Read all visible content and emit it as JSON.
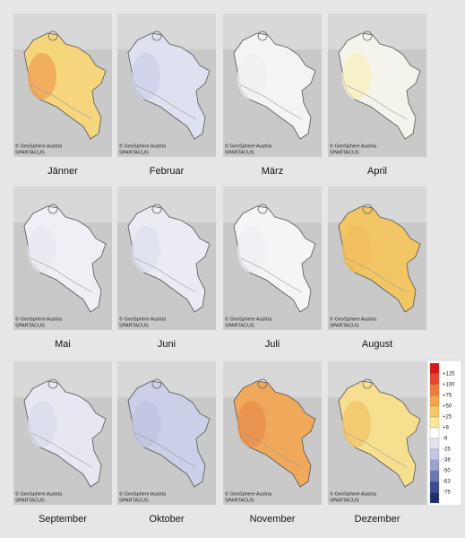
{
  "panels": [
    {
      "month": "Jänner",
      "copyright": "© GeoSphere Austria",
      "source": "SPARTACUS",
      "color": "#f6d67c",
      "accent": "#f0a457"
    },
    {
      "month": "Februar",
      "copyright": "© GeoSphere Austria",
      "source": "SPARTACUS",
      "color": "#dfe1f0",
      "accent": "#cdd1ea"
    },
    {
      "month": "März",
      "copyright": "© GeoSphere Austria",
      "source": "SPARTACUS",
      "color": "#f4f4f5",
      "accent": "#f0f0f2"
    },
    {
      "month": "April",
      "copyright": "© GeoSphere Austria",
      "source": "SPARTACUS",
      "color": "#f5f4ec",
      "accent": "#f8f0c0"
    },
    {
      "month": "Mai",
      "copyright": "© GeoSphere Austria",
      "source": "SPARTACUS",
      "color": "#efeff5",
      "accent": "#e8e9f2"
    },
    {
      "month": "Juni",
      "copyright": "© GeoSphere Austria",
      "source": "SPARTACUS",
      "color": "#eaebf3",
      "accent": "#dfe1ef"
    },
    {
      "month": "Juli",
      "copyright": "© GeoSphere Austria",
      "source": "SPARTACUS",
      "color": "#f5f5f7",
      "accent": "#efeff4"
    },
    {
      "month": "August",
      "copyright": "© GeoSphere Austria",
      "source": "SPARTACUS",
      "color": "#f2c664",
      "accent": "#f0bd5c"
    },
    {
      "month": "September",
      "copyright": "© GeoSphere Austria",
      "source": "SPARTACUS",
      "color": "#e6e7f1",
      "accent": "#d9dcee"
    },
    {
      "month": "Oktober",
      "copyright": "© GeoSphere Austria",
      "source": "SPARTACUS",
      "color": "#cbcfe7",
      "accent": "#bfc4e2"
    },
    {
      "month": "November",
      "copyright": "© GeoSphere Austria",
      "source": "SPARTACUS",
      "color": "#f0a95a",
      "accent": "#ea8f4c"
    },
    {
      "month": "Dezember",
      "copyright": "© GeoSphere Austria",
      "source": "SPARTACUS",
      "color": "#f7df90",
      "accent": "#f3c56c"
    }
  ],
  "legend": {
    "labels": [
      "+125",
      "+100",
      "+75",
      "+50",
      "+25",
      "+8",
      "-8",
      "-25",
      "-38",
      "-50",
      "-63",
      "-75"
    ],
    "colors": [
      "#d7191c",
      "#e8452c",
      "#f07a3a",
      "#f5a34c",
      "#f8c968",
      "#fbe79c",
      "#ffffff",
      "#e1e3f1",
      "#c2c7e3",
      "#9aa2cf",
      "#6b77b3",
      "#3a4a8f",
      "#1f2d6b"
    ]
  }
}
